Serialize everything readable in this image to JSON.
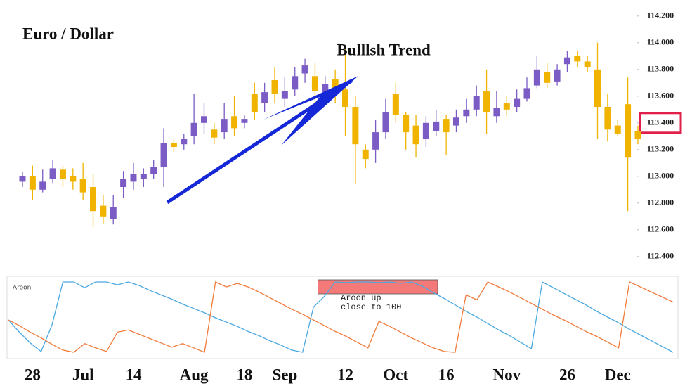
{
  "chart_data": [
    {
      "type": "candlestick",
      "title": "Euro / Dollar",
      "annotation": "Bulllsh Trend",
      "categories": [
        null,
        "28",
        null,
        null,
        null,
        null,
        "Jul",
        null,
        null,
        null,
        null,
        "14",
        null,
        null,
        null,
        null,
        null,
        "Aug",
        null,
        null,
        null,
        null,
        "18",
        null,
        null,
        null,
        "Sep",
        null,
        null,
        null,
        null,
        null,
        "12",
        null,
        null,
        null,
        null,
        "Oct",
        null,
        null,
        null,
        null,
        "16",
        null,
        null,
        null,
        null,
        null,
        "Nov",
        null,
        null,
        null,
        null,
        null,
        "26",
        null,
        null,
        null,
        null,
        "Dec",
        null,
        null
      ],
      "open": [
        112.96,
        113.0,
        112.9,
        112.98,
        113.05,
        113.0,
        112.98,
        112.92,
        112.78,
        112.68,
        112.92,
        112.96,
        112.98,
        113.02,
        113.07,
        113.25,
        113.24,
        113.3,
        113.4,
        113.35,
        113.33,
        113.45,
        113.4,
        113.62,
        113.55,
        113.72,
        113.58,
        113.65,
        113.77,
        113.75,
        113.63,
        113.73,
        113.65,
        113.52,
        113.2,
        113.2,
        113.33,
        113.62,
        113.46,
        113.38,
        113.28,
        113.34,
        113.43,
        113.38,
        113.45,
        113.5,
        113.64,
        113.45,
        113.55,
        113.52,
        113.58,
        113.68,
        113.78,
        113.71,
        113.84,
        113.9,
        113.86,
        113.8,
        113.52,
        113.38,
        113.54,
        113.34
      ],
      "high": [
        113.03,
        113.08,
        113.05,
        113.12,
        113.08,
        113.06,
        113.1,
        113.02,
        112.86,
        112.86,
        113.04,
        113.1,
        113.06,
        113.12,
        113.36,
        113.28,
        113.32,
        113.62,
        113.55,
        113.4,
        113.55,
        113.6,
        113.46,
        113.7,
        113.7,
        113.82,
        113.74,
        113.82,
        113.88,
        113.85,
        113.75,
        113.8,
        113.98,
        113.6,
        113.24,
        113.42,
        113.58,
        113.7,
        113.48,
        113.46,
        113.45,
        113.5,
        113.46,
        113.5,
        113.58,
        113.68,
        113.8,
        113.64,
        113.6,
        113.65,
        113.74,
        113.9,
        113.85,
        113.84,
        113.94,
        113.94,
        113.9,
        114.0,
        113.62,
        113.42,
        113.74,
        113.38
      ],
      "low": [
        112.92,
        112.82,
        112.88,
        112.95,
        112.92,
        112.9,
        112.82,
        112.62,
        112.64,
        112.64,
        112.84,
        112.9,
        112.92,
        112.98,
        112.92,
        113.18,
        113.2,
        113.24,
        113.32,
        113.24,
        113.28,
        113.3,
        113.36,
        113.42,
        113.48,
        113.55,
        113.52,
        113.6,
        113.7,
        113.55,
        113.6,
        113.55,
        113.3,
        112.94,
        113.06,
        113.1,
        113.28,
        113.4,
        113.2,
        113.14,
        113.22,
        113.3,
        113.16,
        113.33,
        113.4,
        113.45,
        113.32,
        113.4,
        113.45,
        113.48,
        113.56,
        113.66,
        113.66,
        113.68,
        113.78,
        113.82,
        113.78,
        113.28,
        113.26,
        113.3,
        112.74,
        113.24
      ],
      "close": [
        113.0,
        112.9,
        112.96,
        113.06,
        112.98,
        112.96,
        112.88,
        112.74,
        112.7,
        112.77,
        112.98,
        113.02,
        113.02,
        113.07,
        113.25,
        113.22,
        113.28,
        113.4,
        113.45,
        113.29,
        113.43,
        113.36,
        113.43,
        113.48,
        113.63,
        113.62,
        113.64,
        113.75,
        113.83,
        113.64,
        113.69,
        113.62,
        113.52,
        113.24,
        113.13,
        113.33,
        113.48,
        113.46,
        113.33,
        113.24,
        113.4,
        113.41,
        113.33,
        113.44,
        113.5,
        113.6,
        113.48,
        113.51,
        113.5,
        113.58,
        113.66,
        113.8,
        113.7,
        113.8,
        113.89,
        113.86,
        113.82,
        113.52,
        113.35,
        113.32,
        113.14,
        113.28
      ],
      "up_color": "#7a5cc4",
      "down_color": "#f0b400",
      "ylim": [
        112.32,
        114.32
      ],
      "yticks": [
        {
          "value": 114.2,
          "label": "114.200"
        },
        {
          "value": 114.0,
          "label": "114.000"
        },
        {
          "value": 113.8,
          "label": "113.800"
        },
        {
          "value": 113.6,
          "label": "113.600"
        },
        {
          "value": 113.4,
          "label": "113.400"
        },
        {
          "value": 113.2,
          "label": "113.200"
        },
        {
          "value": 113.0,
          "label": "113.000"
        },
        {
          "value": 112.8,
          "label": "112.800"
        },
        {
          "value": 112.6,
          "label": "112.600"
        },
        {
          "value": 112.4,
          "label": "112.400"
        }
      ],
      "highlight": 113.4,
      "highlight_color": "#e0204a"
    },
    {
      "type": "line",
      "title": "Aroon",
      "annotation": [
        "Aroon up",
        "close to 100"
      ],
      "annotation_color": "#f47a7a",
      "ylim": [
        0,
        100
      ],
      "series": [
        {
          "color": "#4aa8e0",
          "values": [
            47,
            30,
            15,
            3,
            40,
            100,
            100,
            92,
            100,
            100,
            96,
            100,
            95,
            88,
            82,
            76,
            69,
            63,
            57,
            50,
            44,
            38,
            31,
            25,
            18,
            12,
            5,
            2,
            65,
            80,
            100,
            99,
            100,
            100,
            99,
            100,
            98,
            100,
            94,
            85,
            77,
            68,
            59,
            51,
            42,
            33,
            25,
            16,
            7,
            100,
            92,
            84,
            76,
            68,
            59,
            51,
            43,
            34,
            26,
            18,
            10,
            2
          ]
        },
        {
          "color": "#f07a3a",
          "values": [
            47,
            39,
            30,
            22,
            13,
            5,
            2,
            14,
            8,
            3,
            30,
            33,
            27,
            21,
            15,
            9,
            14,
            8,
            2,
            100,
            93,
            98,
            93,
            86,
            78,
            70,
            62,
            55,
            47,
            39,
            31,
            24,
            16,
            8,
            45,
            38,
            30,
            22,
            15,
            8,
            3,
            2,
            82,
            75,
            100,
            93,
            86,
            78,
            70,
            62,
            54,
            47,
            39,
            31,
            24,
            16,
            8,
            100,
            93,
            86,
            79,
            72
          ]
        }
      ]
    }
  ]
}
